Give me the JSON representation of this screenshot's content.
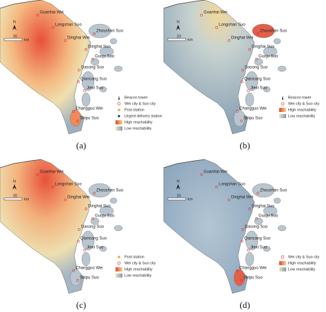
{
  "scale": {
    "north": "N",
    "distance": "20",
    "unit": "km"
  },
  "places": [
    "Guanhai Wei",
    "Longshan Suo",
    "Dinghai Wei",
    "Zhoushan Suo",
    "Dinghai Suo",
    "Guoju Suo",
    "Dasong Suo",
    "Qiancang Suo",
    "Jiexi Suo",
    "Changguo Wei",
    "Shipu Suo"
  ],
  "panels": [
    {
      "caption": "(a)",
      "legend": [
        "Beacon tower",
        "Wei city & Suo city",
        "Post station",
        "Urgent delivery station",
        "High reachability",
        "Low reachability"
      ]
    },
    {
      "caption": "(b)",
      "legend": [
        "Beacon tower",
        "Wei city & Suo city",
        "High reachability",
        "Low reachability"
      ]
    },
    {
      "caption": "(c)",
      "legend": [
        "Post station",
        "Wei city & Suo city",
        "High reachability",
        "Low reachability"
      ]
    },
    {
      "caption": "(d)",
      "legend": [
        "Wei city & Suo city",
        "High reachability",
        "Low reachability"
      ]
    }
  ]
}
